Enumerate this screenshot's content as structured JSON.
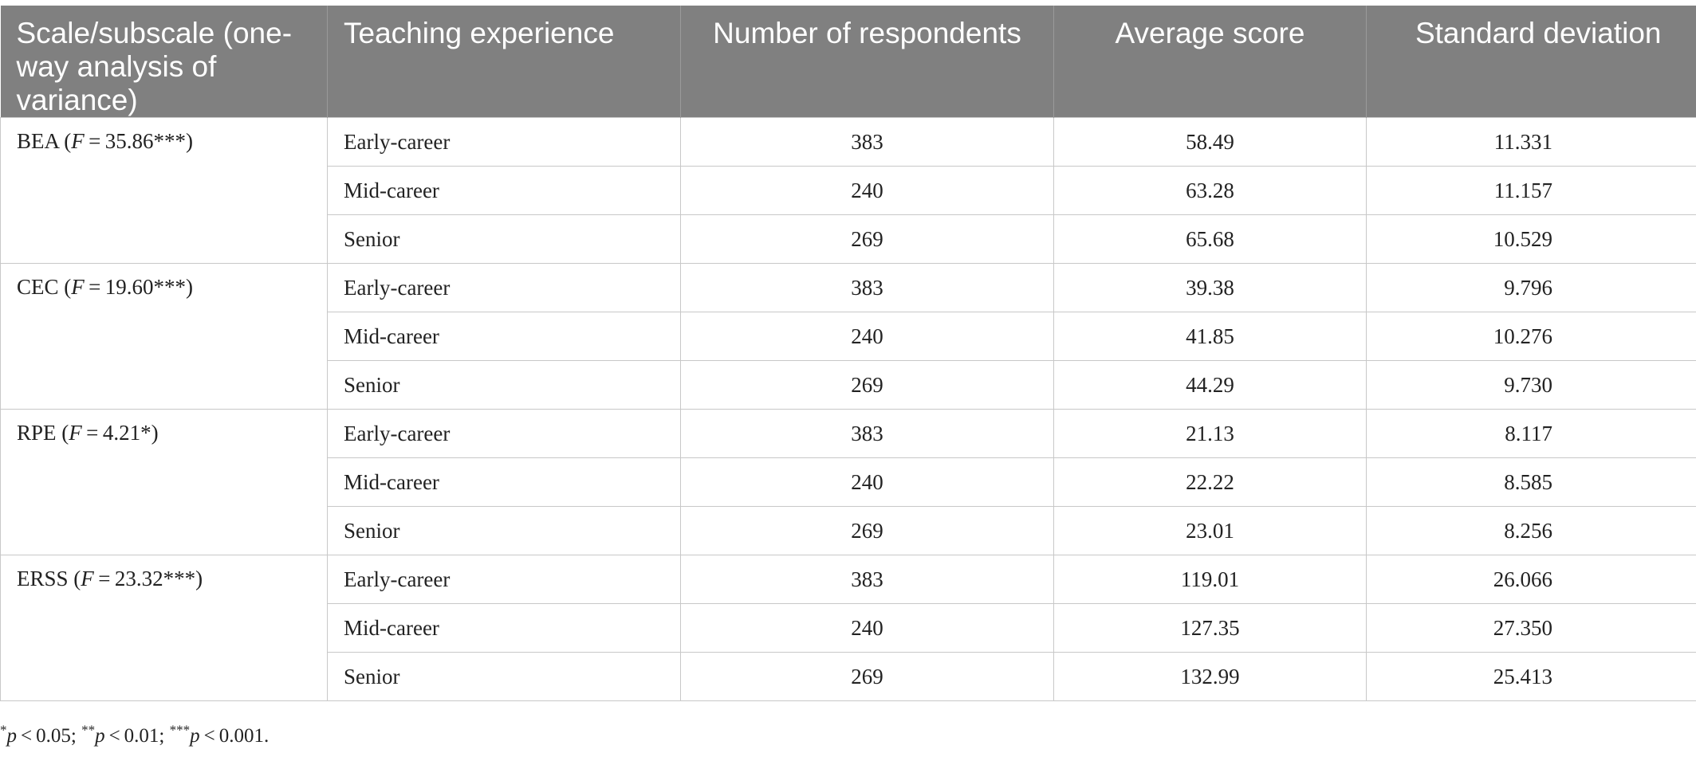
{
  "table": {
    "headers": [
      "Scale/subscale (one-way analysis of variance)",
      "Teaching experience",
      "Number of respondents",
      "Average score",
      "Standard deviation"
    ],
    "groups": [
      {
        "scale": "BEA",
        "f_value": "35.86***",
        "rows": [
          {
            "experience": "Early-career",
            "n": "383",
            "mean": "58.49",
            "sd": "11.331"
          },
          {
            "experience": "Mid-career",
            "n": "240",
            "mean": "63.28",
            "sd": "11.157"
          },
          {
            "experience": "Senior",
            "n": "269",
            "mean": "65.68",
            "sd": "10.529"
          }
        ]
      },
      {
        "scale": "CEC",
        "f_value": "19.60***",
        "rows": [
          {
            "experience": "Early-career",
            "n": "383",
            "mean": "39.38",
            "sd": "9.796"
          },
          {
            "experience": "Mid-career",
            "n": "240",
            "mean": "41.85",
            "sd": "10.276"
          },
          {
            "experience": "Senior",
            "n": "269",
            "mean": "44.29",
            "sd": "9.730"
          }
        ]
      },
      {
        "scale": "RPE",
        "f_value": "4.21*",
        "rows": [
          {
            "experience": "Early-career",
            "n": "383",
            "mean": "21.13",
            "sd": "8.117"
          },
          {
            "experience": "Mid-career",
            "n": "240",
            "mean": "22.22",
            "sd": "8.585"
          },
          {
            "experience": "Senior",
            "n": "269",
            "mean": "23.01",
            "sd": "8.256"
          }
        ]
      },
      {
        "scale": "ERSS",
        "f_value": "23.32***",
        "rows": [
          {
            "experience": "Early-career",
            "n": "383",
            "mean": "119.01",
            "sd": "26.066"
          },
          {
            "experience": "Mid-career",
            "n": "240",
            "mean": "127.35",
            "sd": "27.350"
          },
          {
            "experience": "Senior",
            "n": "269",
            "mean": "132.99",
            "sd": "25.413"
          }
        ]
      }
    ]
  },
  "footnote": {
    "items": [
      {
        "stars": "*",
        "threshold": "0.05"
      },
      {
        "stars": "**",
        "threshold": "0.01"
      },
      {
        "stars": "***",
        "threshold": "0.001"
      }
    ]
  }
}
